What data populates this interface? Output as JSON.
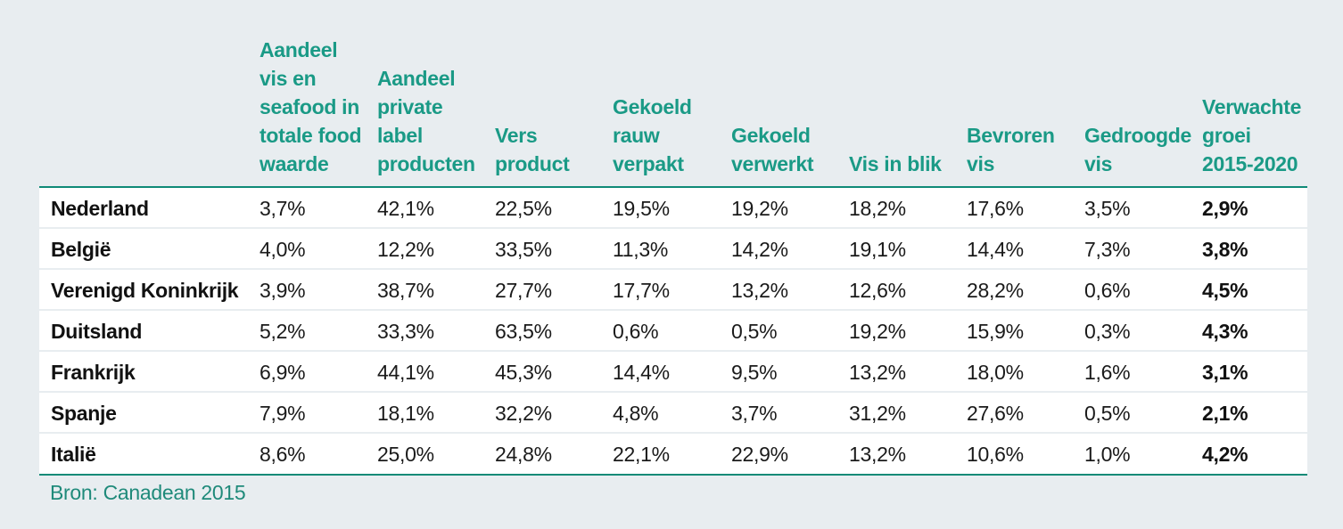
{
  "table": {
    "columns": [
      [
        "Aandeel",
        "vis en",
        "seafood in",
        "totale food",
        "waarde"
      ],
      [
        "Aandeel",
        "private",
        "label",
        "producten"
      ],
      [
        "Vers",
        "product"
      ],
      [
        "Gekoeld",
        "rauw",
        "verpakt"
      ],
      [
        "Gekoeld",
        "verwerkt"
      ],
      [
        "Vis in blik"
      ],
      [
        "Bevroren",
        "vis"
      ],
      [
        "Gedroogde",
        "vis"
      ],
      [
        "Verwachte",
        "groei",
        "2015-2020"
      ]
    ],
    "rows": [
      {
        "country": "Nederland",
        "values": [
          "3,7%",
          "42,1%",
          "22,5%",
          "19,5%",
          "19,2%",
          "18,2%",
          "17,6%",
          "3,5%"
        ],
        "growth": "2,9%"
      },
      {
        "country": "België",
        "values": [
          "4,0%",
          "12,2%",
          "33,5%",
          "11,3%",
          "14,2%",
          "19,1%",
          "14,4%",
          "7,3%"
        ],
        "growth": "3,8%"
      },
      {
        "country": "Verenigd Koninkrijk",
        "values": [
          "3,9%",
          "38,7%",
          "27,7%",
          "17,7%",
          "13,2%",
          "12,6%",
          "28,2%",
          "0,6%"
        ],
        "growth": "4,5%"
      },
      {
        "country": "Duitsland",
        "values": [
          "5,2%",
          "33,3%",
          "63,5%",
          "0,6%",
          "0,5%",
          "19,2%",
          "15,9%",
          "0,3%"
        ],
        "growth": "4,3%"
      },
      {
        "country": "Frankrijk",
        "values": [
          "6,9%",
          "44,1%",
          "45,3%",
          "14,4%",
          "9,5%",
          "13,2%",
          "18,0%",
          "1,6%"
        ],
        "growth": "3,1%"
      },
      {
        "country": "Spanje",
        "values": [
          "7,9%",
          "18,1%",
          "32,2%",
          "4,8%",
          "3,7%",
          "31,2%",
          "27,6%",
          "0,5%"
        ],
        "growth": "2,1%"
      },
      {
        "country": "Italië",
        "values": [
          "8,6%",
          "25,0%",
          "24,8%",
          "22,1%",
          "22,9%",
          "13,2%",
          "10,6%",
          "1,0%"
        ],
        "growth": "4,2%"
      }
    ]
  },
  "source": "Bron: Canadean 2015"
}
